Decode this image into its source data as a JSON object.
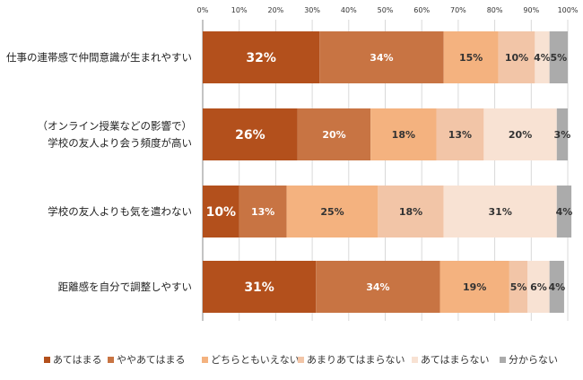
{
  "chart_data": {
    "type": "bar",
    "orientation": "horizontal",
    "stacked": true,
    "percent_scale": true,
    "xlim": [
      0,
      100
    ],
    "ticks": [
      "0%",
      "10%",
      "20%",
      "30%",
      "40%",
      "50%",
      "60%",
      "70%",
      "80%",
      "90%",
      "100%"
    ],
    "legend_position": "bottom",
    "grid": true,
    "categories": [
      {
        "lines": [
          "仕事の連帯感で仲間意識が生まれやすい"
        ]
      },
      {
        "lines": [
          "（オンライン授業などの影響で）",
          "学校の友人より会う頻度が高い"
        ]
      },
      {
        "lines": [
          "学校の友人よりも気を遣わない"
        ]
      },
      {
        "lines": [
          "距離感を自分で調整しやすい"
        ]
      }
    ],
    "series": [
      {
        "name": "あてはまる",
        "color": "#B3501C",
        "values": [
          32,
          26,
          10,
          31
        ]
      },
      {
        "name": "ややあてはまる",
        "color": "#C87443",
        "values": [
          34,
          20,
          13,
          34
        ]
      },
      {
        "name": "どちらともいえない",
        "color": "#F4B27F",
        "values": [
          15,
          18,
          25,
          19
        ]
      },
      {
        "name": "あまりあてはまらない",
        "color": "#F2C5A7",
        "values": [
          10,
          13,
          18,
          5
        ]
      },
      {
        "name": "あてはまらない",
        "color": "#F8E2D3",
        "values": [
          4,
          20,
          31,
          6
        ]
      },
      {
        "name": "分からない",
        "color": "#ABABAB",
        "values": [
          5,
          3,
          4,
          4
        ]
      }
    ]
  }
}
